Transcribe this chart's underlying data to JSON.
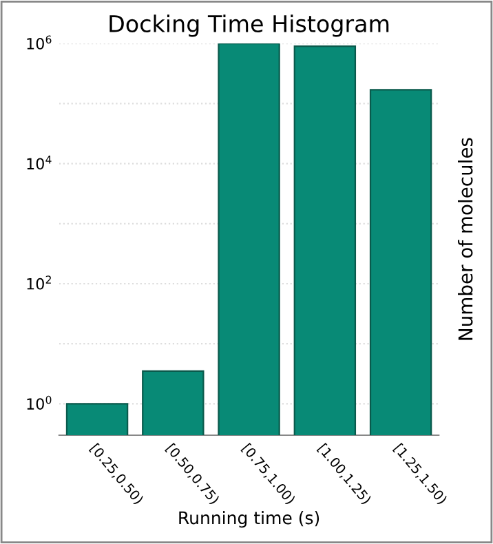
{
  "chart_data": {
    "type": "bar",
    "title": "Docking Time Histogram",
    "xlabel": "Running time (s)",
    "ylabel": "Number of molecules",
    "categories": [
      "[0.25,0.50)",
      "[0.50,0.75)",
      "[0.75,1.00)",
      "[1.00,1.25)",
      "[1.25,1.50)"
    ],
    "values": [
      1,
      3.5,
      1000000,
      900000,
      170000
    ],
    "color": "#088a76",
    "log": "y",
    "ylim": [
      0.3,
      1000000
    ],
    "yticks": [
      {
        "value": 1,
        "label": "10$^{0}$"
      },
      {
        "value": 10,
        "label": null
      },
      {
        "value": 100,
        "label": "10$^{2}$"
      },
      {
        "value": 1000,
        "label": null
      },
      {
        "value": 10000,
        "label": "10$^{4}$"
      },
      {
        "value": 100000,
        "label": null
      },
      {
        "value": 1000000,
        "label": "10$^{6}$"
      }
    ],
    "grid": "y"
  }
}
